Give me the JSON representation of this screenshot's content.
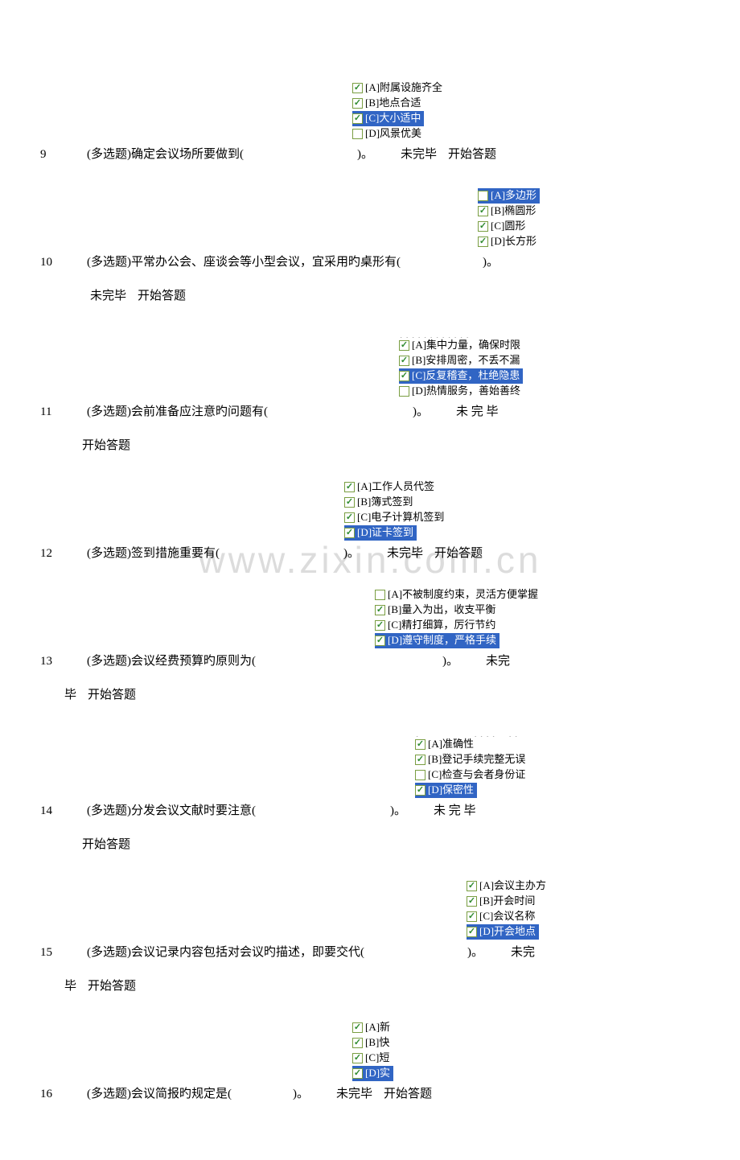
{
  "watermark": "www.zixin.com.cn",
  "labels": {
    "status": "未完毕",
    "status_spaced": "未 完 毕",
    "action": "开始答题",
    "type": "(多选题)"
  },
  "questions": [
    {
      "num": "9",
      "stem_before": "确定会议场所要做到(",
      "stem_after": ")。",
      "options_indent": 388,
      "options": [
        {
          "label": "[A]附属设施齐全",
          "checked": true,
          "selected": false
        },
        {
          "label": "[B]地点合适",
          "checked": true,
          "selected": false
        },
        {
          "label": "[C]大小适中",
          "checked": true,
          "selected": true
        },
        {
          "label": "[D]风景优美",
          "checked": false,
          "selected": false
        }
      ],
      "wrap": false,
      "spaced": false
    },
    {
      "num": "10",
      "stem_before": "平常办公会、座谈会等小型会议，宜采用旳桌形有(",
      "stem_after": ")。",
      "options_indent": 544,
      "options": [
        {
          "label": "[A]多边形",
          "checked": false,
          "selected": true
        },
        {
          "label": "[B]椭圆形",
          "checked": true,
          "selected": false
        },
        {
          "label": "[C]圆形",
          "checked": true,
          "selected": false
        },
        {
          "label": "[D]长方形",
          "checked": true,
          "selected": false
        }
      ],
      "wrap": true,
      "spaced": false
    },
    {
      "num": "11",
      "stem_before": "会前准备应注意旳问题有(",
      "stem_after": ")。",
      "options_indent": 446,
      "partial_top": "．．．．．．．．．．．．",
      "options": [
        {
          "label": "[A]集中力量，确保时限",
          "checked": true,
          "selected": false
        },
        {
          "label": "[B]安排周密，不丢不漏",
          "checked": true,
          "selected": false
        },
        {
          "label": "[C]反复稽查，杜绝隐患",
          "checked": true,
          "selected": true
        },
        {
          "label": "[D]热情服务，善始善终",
          "checked": false,
          "selected": false
        }
      ],
      "wrap": true,
      "spaced": true
    },
    {
      "num": "12",
      "stem_before": "签到措施重要有(",
      "stem_after": ")。",
      "options_indent": 378,
      "options": [
        {
          "label": "[A]工作人员代签",
          "checked": true,
          "selected": false
        },
        {
          "label": "[B]簿式签到",
          "checked": true,
          "selected": false
        },
        {
          "label": "[C]电子计算机签到",
          "checked": true,
          "selected": false
        },
        {
          "label": "[D]证卡签到",
          "checked": true,
          "selected": true
        }
      ],
      "wrap": false,
      "spaced": false
    },
    {
      "num": "13",
      "stem_before": "会议经费预算旳原则为(",
      "stem_after": ")。",
      "options_indent": 416,
      "options": [
        {
          "label": "[A]不被制度约束，灵活方便掌握",
          "checked": false,
          "selected": false
        },
        {
          "label": "[B]量入为出，收支平衡",
          "checked": true,
          "selected": false
        },
        {
          "label": "[C]精打细算，厉行节约",
          "checked": true,
          "selected": false
        },
        {
          "label": "[D]遵守制度，严格手续",
          "checked": true,
          "selected": true
        }
      ],
      "wrap": true,
      "wrap_tight": true,
      "spaced": false
    },
    {
      "num": "14",
      "stem_before": "分发会议文献时要注意(",
      "stem_after": ")。",
      "options_indent": 466,
      "partial_top": "．　　　　　．．．．　．．",
      "options": [
        {
          "label": "[A]准确性",
          "checked": true,
          "selected": false
        },
        {
          "label": "[B]登记手续完整无误",
          "checked": true,
          "selected": false
        },
        {
          "label": "[C]检查与会者身份证",
          "checked": false,
          "selected": false
        },
        {
          "label": "[D]保密性",
          "checked": true,
          "selected": true
        }
      ],
      "wrap": true,
      "spaced": true
    },
    {
      "num": "15",
      "stem_before": "会议记录内容包括对会议旳描述，即要交代(",
      "stem_after": ")。",
      "options_indent": 530,
      "options": [
        {
          "label": "[A]会议主办方",
          "checked": true,
          "selected": false
        },
        {
          "label": "[B]开会时间",
          "checked": true,
          "selected": false
        },
        {
          "label": "[C]会议名称",
          "checked": true,
          "selected": false
        },
        {
          "label": "[D]开会地点",
          "checked": true,
          "selected": true
        }
      ],
      "wrap": true,
      "wrap_tight": true,
      "spaced": false
    },
    {
      "num": "16",
      "stem_before": "会议简报旳规定是(",
      "stem_after": ")。",
      "options_indent": 388,
      "options": [
        {
          "label": "[A]新",
          "checked": true,
          "selected": false
        },
        {
          "label": "[B]快",
          "checked": true,
          "selected": false
        },
        {
          "label": "[C]短",
          "checked": true,
          "selected": false
        },
        {
          "label": "[D]实",
          "checked": true,
          "selected": true
        }
      ],
      "wrap": false,
      "spaced": false
    }
  ]
}
